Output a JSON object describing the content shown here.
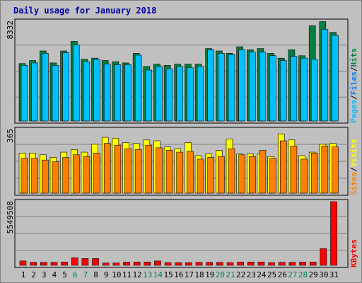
{
  "chart_data": {
    "type": "bar",
    "title": "Daily usage for January 2018",
    "categories": [
      "1",
      "2",
      "3",
      "4",
      "5",
      "6",
      "7",
      "8",
      "9",
      "10",
      "11",
      "12",
      "13",
      "14",
      "15",
      "16",
      "17",
      "18",
      "19",
      "20",
      "21",
      "22",
      "23",
      "24",
      "25",
      "26",
      "27",
      "28",
      "29",
      "30",
      "31"
    ],
    "weekend_days": [
      "6",
      "7",
      "13",
      "14",
      "20",
      "21",
      "27",
      "28"
    ],
    "panels": [
      {
        "id": "hits-files-pages",
        "max_label": "8332",
        "ymax": 8332,
        "legend": [
          "Pages",
          "Files",
          "Hits"
        ],
        "series": [
          {
            "name": "Hits",
            "color": "#008040",
            "values": [
              4800,
              5050,
              5850,
              4850,
              5850,
              6650,
              5150,
              5250,
              5050,
              4950,
              4850,
              5650,
              4550,
              4750,
              4650,
              4750,
              4750,
              4750,
              6050,
              5850,
              5650,
              6200,
              5950,
              6050,
              5650,
              5250,
              5950,
              5450,
              7950,
              8300,
              7400
            ]
          },
          {
            "name": "Files",
            "color": "#00C0FF",
            "values": [
              4650,
              4850,
              5650,
              4650,
              5700,
              6350,
              4950,
              5150,
              4750,
              4700,
              4700,
              5500,
              4250,
              4550,
              4350,
              4550,
              4450,
              4550,
              5950,
              5650,
              5550,
              5950,
              5750,
              5750,
              5450,
              5050,
              5400,
              5250,
              5150,
              7650,
              7150
            ]
          },
          {
            "name": "Pages",
            "color": "#00C0FF",
            "values": []
          }
        ]
      },
      {
        "id": "visits-sites",
        "max_label": "365",
        "ymax": 365,
        "legend": [
          "Sites",
          "Visits"
        ],
        "series": [
          {
            "name": "Visits",
            "color": "#FFFF00",
            "values": [
              230,
              230,
              220,
              205,
              235,
              250,
              235,
              280,
              320,
              315,
              290,
              285,
              305,
              300,
              265,
              255,
              290,
              215,
              225,
              245,
              310,
              225,
              225,
              225,
              210,
              340,
              305,
              215,
              235,
              280,
              285
            ]
          },
          {
            "name": "Sites",
            "color": "#FF8000",
            "values": [
              200,
              200,
              190,
              180,
              205,
              220,
              210,
              230,
              285,
              275,
              255,
              250,
              275,
              260,
              245,
              235,
              240,
              195,
              205,
              210,
              255,
              220,
              210,
              245,
              200,
              300,
              270,
              195,
              230,
              270,
              265
            ]
          }
        ]
      },
      {
        "id": "kbytes",
        "max_label": "5549508",
        "ymax": 5549508,
        "legend": [
          "KBytes"
        ],
        "series": [
          {
            "name": "KBytes",
            "color": "#FF0000",
            "values": [
              380000,
              260000,
              260000,
              260000,
              290000,
              660000,
              590000,
              590000,
              200000,
              200000,
              290000,
              290000,
              290000,
              380000,
              230000,
              230000,
              230000,
              260000,
              260000,
              260000,
              230000,
              290000,
              290000,
              290000,
              230000,
              260000,
              260000,
              290000,
              290000,
              1450000,
              5549508
            ]
          }
        ]
      }
    ]
  }
}
